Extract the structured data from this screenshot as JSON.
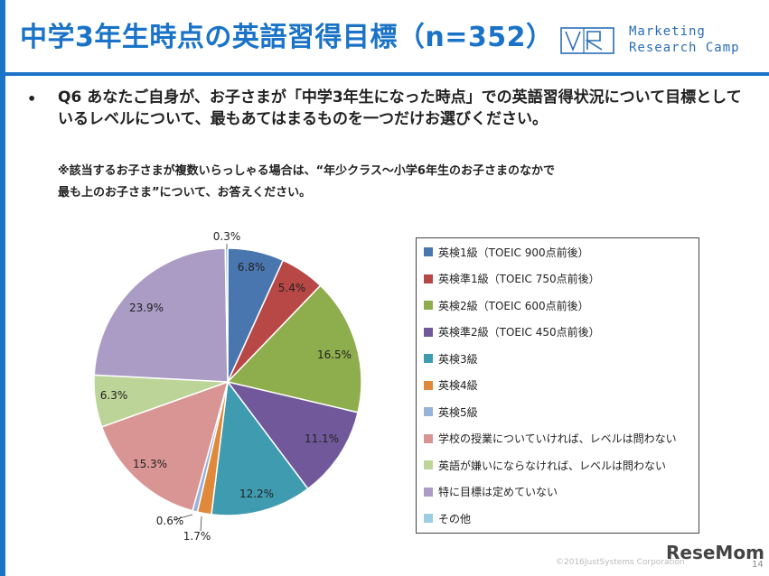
{
  "header": {
    "title": "中学3年生時点の英語習得目標（n=352）",
    "logo_line1": "Marketing",
    "logo_line2": "Research Camp"
  },
  "question": {
    "bullet": "•",
    "text": "Q6 あなたご自身が、お子さまが「中学3年生になった時点」での英語習得状況について目標としているレベルについて、最もあてはまるものを一つだけお選びください。",
    "note_line1": "※該当するお子さまが複数いらっしゃる場合は、“年少クラス～小学6年生のお子さまのなかで",
    "note_line2": "最も上のお子さま”について、お答えください。"
  },
  "chart_data": {
    "type": "pie",
    "title": "",
    "categories": [
      "英検1級（TOEIC 900点前後）",
      "英検準1級（TOEIC 750点前後）",
      "英検2級（TOEIC 600点前後）",
      "英検準2級（TOEIC 450点前後）",
      "英検3級",
      "英検4級",
      "英検5級",
      "学校の授業についていければ、レベルは問わない",
      "英語が嫌いにならなければ、レベルは問わない",
      "特に目標は定めていない",
      "その他"
    ],
    "values": [
      6.8,
      5.4,
      16.5,
      11.1,
      12.2,
      1.7,
      0.6,
      15.3,
      6.3,
      23.9,
      0.3
    ],
    "labels": [
      "6.8%",
      "5.4%",
      "16.5%",
      "11.1%",
      "12.2%",
      "1.7%",
      "0.6%",
      "15.3%",
      "6.3%",
      "23.9%",
      "0.3%"
    ],
    "colors": [
      "#4a76b0",
      "#b84845",
      "#8ead4c",
      "#71589a",
      "#3e9bb0",
      "#e0893a",
      "#98b3da",
      "#d99594",
      "#bcd497",
      "#aa9cc4",
      "#9ccde0"
    ],
    "legend_position": "right"
  },
  "footer": {
    "copyright": "©2016JustSystems Corporation",
    "brand": "ReseMom",
    "page": "14"
  }
}
